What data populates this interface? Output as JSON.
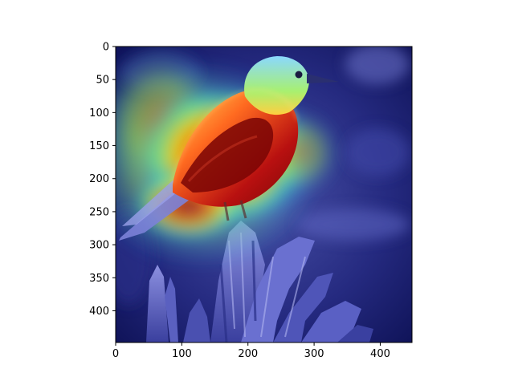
{
  "image": {
    "subject": "bird-on-stump",
    "overlay": "jet-colormap-attention-heatmap",
    "background_color": "#1a1f6e",
    "heat_colors": [
      "#00007f",
      "#0000ff",
      "#00ffff",
      "#ffff00",
      "#ff0000",
      "#7f0000"
    ]
  },
  "axes": {
    "x_ticks": [
      "0",
      "100",
      "200",
      "300",
      "400"
    ],
    "y_ticks": [
      "0",
      "50",
      "100",
      "150",
      "200",
      "250",
      "300",
      "350",
      "400"
    ],
    "x_range": [
      0,
      448
    ],
    "y_range": [
      0,
      448
    ]
  }
}
